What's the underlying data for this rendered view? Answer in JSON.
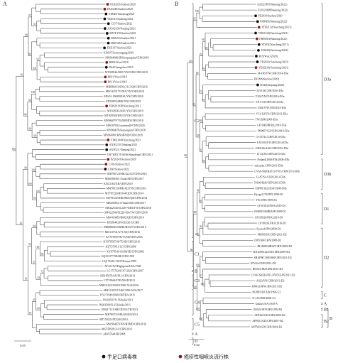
{
  "panels": [
    {
      "label": "A",
      "scale_label": "0.05",
      "leaves": [
        {
          "name": "PZ20265/Suzhou/2020",
          "marker": "red"
        },
        {
          "name": "PZ20248/Suzhou/2020",
          "marker": "red"
        },
        {
          "name": "YD046/Yancheng/2021",
          "marker": "black"
        },
        {
          "name": "YD031/Yancheng/2021",
          "marker": "black"
        },
        {
          "name": "C157/Suzhou/2022",
          "marker": "black"
        },
        {
          "name": "AXW2109/Nanjing/2021",
          "marker": "black"
        },
        {
          "name": "DZTE170/Suzhou/2021",
          "marker": "black"
        },
        {
          "name": "DZE233/Suzhou/2021",
          "marker": "black"
        },
        {
          "name": "DZE328/Suzhou/2021",
          "marker": "black"
        },
        {
          "name": "DZE167/Suzhou/2021",
          "marker": "black"
        },
        {
          "name": "KJ9107/Lianyungang/2019",
          "marker": "none"
        },
        {
          "name": "MN964080/HN/herpangina/CHN/2018",
          "marker": "none"
        },
        {
          "name": "B005/Wuxi/2018",
          "marker": "red"
        },
        {
          "name": "D44/Changzhou/2019",
          "marker": "black"
        },
        {
          "name": "MT028544/KR1/YN/CHN/CHN/2019",
          "marker": "none"
        },
        {
          "name": "B001/Wuxi/2018",
          "marker": "red"
        },
        {
          "name": "B011/Wuxi/2018",
          "marker": "red"
        },
        {
          "name": "MH086033/SDLC/LC028/CHN/2016",
          "marker": "none"
        },
        {
          "name": "MW16701757/HA/YN/CHN/2018",
          "marker": "none"
        },
        {
          "name": "MW16 106958/HA/YN/CHN/2018",
          "marker": "none"
        },
        {
          "name": "MT028534/HK/YN/CHN/2019",
          "marker": "none"
        },
        {
          "name": "YD0201038/Yancheng/2021",
          "marker": "red"
        },
        {
          "name": "MT028545/KR1/YN/CHN/2019",
          "marker": "none"
        },
        {
          "name": "MT028548/KR110/YN/CHN/2019",
          "marker": "none"
        },
        {
          "name": "MN964079/792/HFMD/CHN/2018",
          "marker": "none"
        },
        {
          "name": "MW267852/xuemen20/CHN/2020",
          "marker": "none"
        },
        {
          "name": "MN964078/herpangina/CHN/2018",
          "marker": "none"
        },
        {
          "name": "MN964081/HN/HFMD/CHN/2018",
          "marker": "none"
        },
        {
          "name": "YD021049/Yancheng/2021",
          "marker": "red"
        },
        {
          "name": "AXW2131/Nanjing/2021",
          "marker": "black"
        },
        {
          "name": "AXW211/Nanjing/2021",
          "marker": "black"
        },
        {
          "name": "ON730817/EA036/Shandong/CHN/2021",
          "marker": "none"
        },
        {
          "name": "PZ20243/Suzhou/2020",
          "marker": "red"
        },
        {
          "name": "C156/Suzhou/2022",
          "marker": "red"
        },
        {
          "name": "C160/Suzhou/2022",
          "marker": "black"
        },
        {
          "name": "MH780723/HK/422123/CHN/2014",
          "marker": "none"
        },
        {
          "name": "MK658830/1/Taian/SD/CHN/2017",
          "marker": "none"
        },
        {
          "name": "KJ541163/XH/CHN/2010",
          "marker": "none"
        },
        {
          "name": "MH780726/HK/423178/CHN/2010",
          "marker": "none"
        },
        {
          "name": "MT787220/HS144/QD/CHN/2014",
          "marker": "none"
        },
        {
          "name": "MT787225/HK/8605/QD/CHN/2014",
          "marker": "none"
        },
        {
          "name": "MK658831/A/Taian/SD/CHN/2017",
          "marker": "none"
        },
        {
          "name": "MF422545/61228-70494/TW/CHN/2018",
          "marker": "none"
        },
        {
          "name": "MF422546/61228-836/TW/CHN/2018",
          "marker": "none"
        },
        {
          "name": "MW410085/R092/QD/CHN/2019",
          "marker": "none"
        },
        {
          "name": "KP289442/P1033/2011/CHN",
          "marker": "none"
        },
        {
          "name": "MH086030/SDHZ/HZ337/CHN/2015",
          "marker": "none"
        },
        {
          "name": "MK310741/6/71/XJ/CHN/2016",
          "marker": "none"
        },
        {
          "name": "KY978567/96/75/SD/CHN/2016",
          "marker": "none"
        },
        {
          "name": "KY978567/96/75/SD/CHN/2016",
          "marker": "none"
        },
        {
          "name": "JQ715708.1/LC/CHN/2006",
          "marker": "none"
        },
        {
          "name": "KY978541/03188/SD/CHN/2003",
          "marker": "none"
        },
        {
          "name": "GQ253377/98AH/CHN/1998",
          "marker": "none"
        },
        {
          "name": "GQ176232/11023/Kenya/1999",
          "marker": "none"
        },
        {
          "name": "AY421767/Highpoint/USA/1948",
          "marker": "none"
        },
        {
          "name": "LC175762/SC07-282/CHN/2007",
          "marker": "none"
        },
        {
          "name": "KR185979/SN/PL1/CHN/2014",
          "marker": "none"
        },
        {
          "name": "LT719044/9745/MAD/2011",
          "marker": "none"
        },
        {
          "name": "MH111022/C040/CHW/AUS/2016",
          "marker": "none"
        },
        {
          "name": "MH111025/C146/CHW/AUS/2017",
          "marker": "none"
        },
        {
          "name": "KY271949/OB0238/FRA/2015",
          "marker": "none"
        },
        {
          "name": "JN203507/N-56/India/2011",
          "marker": "none"
        },
        {
          "name": "JN203509/N-253/India/2011",
          "marker": "none"
        },
        {
          "name": "OM417121/SH/CRC01/TH/2012",
          "marker": "none"
        },
        {
          "name": "MH780731/HK/416203/2012",
          "marker": "none"
        },
        {
          "name": "MT150222/JX2204/2014",
          "marker": "none"
        },
        {
          "name": "MW964079/305/HFMD/CHN/2016",
          "marker": "none"
        },
        {
          "name": "MG550920/AA/CHN/2016",
          "marker": "none"
        },
        {
          "name": "AB457644/JR/2008",
          "marker": "none"
        }
      ],
      "clades": [
        "C2",
        "C1",
        "B",
        "C3",
        "C4",
        "C5",
        "A",
        "D"
      ],
      "bootstraps": [
        "95",
        "97",
        "91",
        "100",
        "99",
        "88",
        "100",
        "86",
        "90",
        "90",
        "80",
        "96",
        "100",
        "100",
        "93",
        "100",
        "99",
        "100",
        "99",
        "100",
        "72",
        "64",
        "97",
        "93",
        "100",
        "95",
        "67",
        "83",
        "63",
        "100",
        "100",
        "100",
        "96",
        "100",
        "100",
        "100"
      ]
    },
    {
      "label": "B",
      "scale_label": "0.02",
      "leaves": [
        {
          "name": "A2022/807(Nantong/2022)",
          "marker": "none"
        },
        {
          "name": "E2022/008(Nantong/2022)",
          "marker": "none"
        },
        {
          "name": "PZ2010/Suzhou/2020",
          "marker": "black"
        },
        {
          "name": "FHMD1(Nantong/2022)",
          "marker": "black"
        },
        {
          "name": "YD02122(Yancheng/2021)",
          "marker": "red"
        },
        {
          "name": "YD02134(Yancheng/2021)",
          "marker": "black"
        },
        {
          "name": "FHM010(Nantong/2022)",
          "marker": "red"
        },
        {
          "name": "YD031(Yancheng/2021)",
          "marker": "black"
        },
        {
          "name": "YD043(Yancheng/2022)",
          "marker": "black"
        },
        {
          "name": "B15(Wuxi/2020)",
          "marker": "black"
        },
        {
          "name": "YD2021(Yancheng/2021)",
          "marker": "black"
        },
        {
          "name": "YD20214(Yancheng/2021)",
          "marker": "red"
        },
        {
          "name": "14-106/YN/CHN/2014-D3a",
          "marker": "none"
        },
        {
          "name": "DZO9S(Suzhou/2020)",
          "marker": "none"
        },
        {
          "name": "D34(Zhenjiang/2020)",
          "marker": "black"
        },
        {
          "name": "525/GS/CHN/2016-D3a",
          "marker": "none"
        },
        {
          "name": "F324/YN/CHN/2016-D3a",
          "marker": "none"
        },
        {
          "name": "TJ13-54/CHN/2013-D3a",
          "marker": "none"
        },
        {
          "name": "J044/YN/CHN/2014-D3a",
          "marker": "none"
        },
        {
          "name": "V13-Ed/TX/CHN/2013-D3a",
          "marker": "none"
        },
        {
          "name": "TW/2009/2009-D3a",
          "marker": "none"
        },
        {
          "name": "CF19402RFRA/2010-D3a",
          "marker": "none"
        },
        {
          "name": "D99007/GZ/CHN/2010-D3a",
          "marker": "none"
        },
        {
          "name": "13-107/JL/CHN/2013-D3a",
          "marker": "none"
        },
        {
          "name": "FJL5/03/FJ/CHN/2014-D3a",
          "marker": "none"
        },
        {
          "name": "10M166/AJS/CHN/2010-D3a",
          "marker": "none"
        },
        {
          "name": "15-43/JX/CHN/2015-D3a",
          "marker": "none"
        },
        {
          "name": "Finland/2008/FIN/2008-D3b",
          "marker": "none"
        },
        {
          "name": "shizuoka1/JPN/2011-D3b",
          "marker": "none"
        },
        {
          "name": "CVA6-SHZH2011-0701/CHN/2011-D3b",
          "marker": "none"
        },
        {
          "name": "13-87/SA/CHN/2013-D3b",
          "marker": "none"
        },
        {
          "name": "54106/HeB/CHN/2013-D3b",
          "marker": "none"
        },
        {
          "name": "ESP08/1023/ESP/2008-D3b",
          "marker": "none"
        },
        {
          "name": "Hyogo1278/JPN/1999-D1",
          "marker": "none"
        },
        {
          "name": "TW/1999/1999-D1",
          "marker": "none"
        },
        {
          "name": "CF181032/FRA/2010-D1",
          "marker": "none"
        },
        {
          "name": "ESP08/5469B/ESP/2008-D1",
          "marker": "none"
        },
        {
          "name": "CF165026/FRA/2010-D1",
          "marker": "none"
        },
        {
          "name": "CF180261/FRA/2010-D1",
          "marker": "none"
        },
        {
          "name": "Kyoto4/JPN/2009-D2",
          "marker": "none"
        },
        {
          "name": "FH058/SX/CHN/2011-D2",
          "marker": "none"
        },
        {
          "name": "C085/SH/CHN/2008-D2",
          "marker": "none"
        },
        {
          "name": "JB1408044RSZ/CHN/2008-D2",
          "marker": "none"
        },
        {
          "name": "BJ140901222/SZ/CHN/2009-D2",
          "marker": "none"
        },
        {
          "name": "SHAPHC1883/SH/CHN/2011-D2",
          "marker": "none"
        },
        {
          "name": "075/GS/CHN/2011-D2",
          "marker": "none"
        },
        {
          "name": "IB1601/JBJ/CHN/2013-D2",
          "marker": "none"
        },
        {
          "name": "CVA6-SHZH2011-0507/CHN/2011-D2",
          "marker": "none"
        },
        {
          "name": "A023/YN/CHN/2013-D2",
          "marker": "none"
        },
        {
          "name": "HN421/HN/CHN/2011-D2",
          "marker": "none"
        },
        {
          "name": "96188/SD/CHN/1996-C2",
          "marker": "none"
        },
        {
          "name": "N-313/IND/2008-C2",
          "marker": "none"
        },
        {
          "name": "Gdula/USA/1949-A",
          "marker": "none"
        },
        {
          "name": "192022/SD/CHN/1992-B1",
          "marker": "none"
        },
        {
          "name": "AFP262/GD/CHN/2005-B2",
          "marker": "none"
        },
        {
          "name": "AFP051/GD/CHN/2007-B2",
          "marker": "none"
        },
        {
          "name": "AFP560/GD/CHN/2004-B2",
          "marker": "none"
        }
      ],
      "clades": [
        "D3a",
        "D3b",
        "D1",
        "D2",
        "C",
        "A",
        "B1",
        "B2",
        "B"
      ],
      "bootstraps": [
        "100",
        "65",
        "85",
        "98",
        "90",
        "82",
        "95",
        "74",
        "80",
        "80",
        "99",
        "76",
        "59",
        "91",
        "100",
        "58",
        "88",
        "84",
        "100",
        "100",
        "100",
        "97",
        "100",
        "100",
        "100",
        "100",
        "56",
        "98",
        "100",
        "52",
        "68",
        "100",
        "100"
      ]
    }
  ],
  "legend": {
    "black_label": "手足口病毒株",
    "red_label": "疱疹性咽峡炎流行株",
    "black_color": "#111111",
    "red_color": "#8b1a1a"
  }
}
